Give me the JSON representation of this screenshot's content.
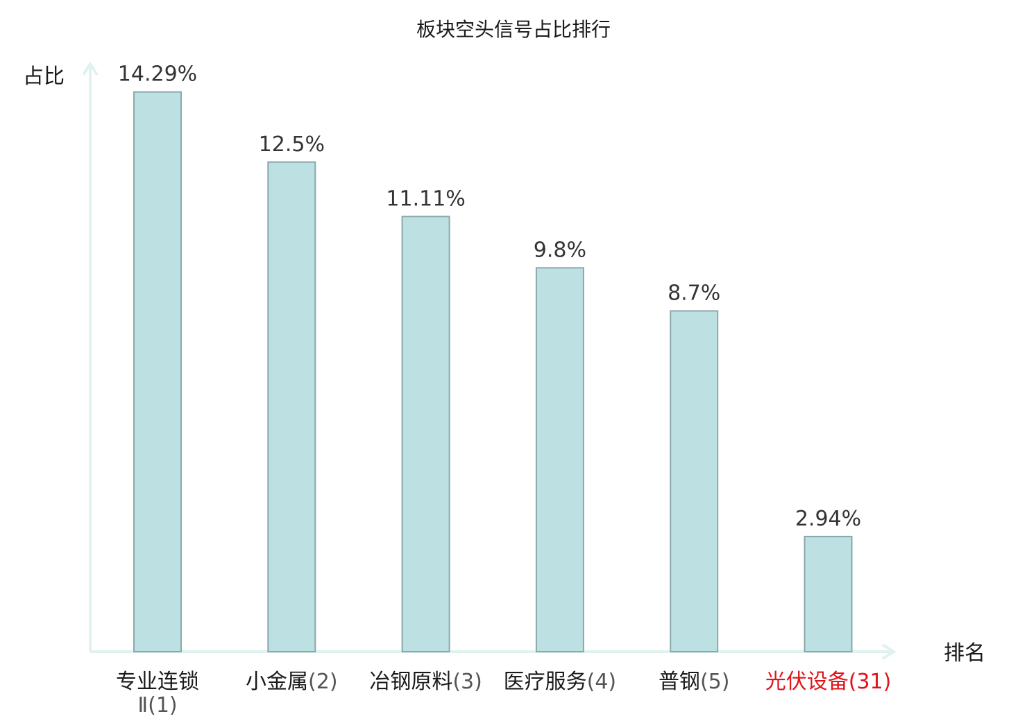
{
  "chart_data": {
    "type": "bar",
    "title": "板块空头信号占比排行",
    "ylabel": "占比",
    "xlabel": "排名",
    "ylim": [
      0,
      15
    ],
    "grid": false,
    "categories": [
      {
        "name": "专业连锁Ⅱ",
        "rank": "(1)",
        "highlight": false
      },
      {
        "name": "小金属",
        "rank": "(2)",
        "highlight": false
      },
      {
        "name": "冶钢原料",
        "rank": "(3)",
        "highlight": false
      },
      {
        "name": "医疗服务",
        "rank": "(4)",
        "highlight": false
      },
      {
        "name": "普钢",
        "rank": "(5)",
        "highlight": false
      },
      {
        "name": "光伏设备",
        "rank": "(31)",
        "highlight": true
      }
    ],
    "values": [
      14.29,
      12.5,
      11.11,
      9.8,
      8.7,
      2.94
    ],
    "value_labels": [
      "14.29%",
      "12.5%",
      "11.11%",
      "9.8%",
      "8.7%",
      "2.94%"
    ],
    "colors": {
      "bar_fill": "#bde0e3",
      "bar_stroke": "#8aa8ab",
      "axis": "#e0f2ef",
      "highlight": "#e0141b"
    }
  }
}
